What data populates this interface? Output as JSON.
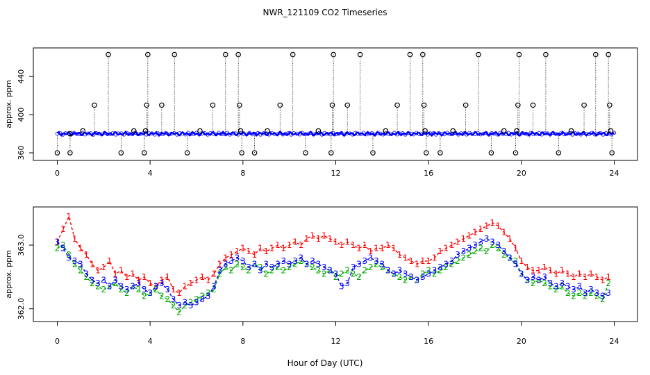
{
  "chart_data": [
    {
      "type": "scatter",
      "title": "NWR_121109  CO2 Timeseries",
      "xlabel": "",
      "ylabel": "approx. ppm",
      "xlim": [
        0,
        24
      ],
      "ylim": [
        352,
        470
      ],
      "xticks": [
        "0",
        "4",
        "8",
        "12",
        "16",
        "20",
        "24"
      ],
      "yticks": [
        "360",
        "400",
        "440"
      ],
      "baseline_ppm": 380,
      "series": [
        {
          "name": "raw (blue)",
          "color": "#0000ff",
          "value_range": [
            378,
            382
          ]
        },
        {
          "name": "outliers (black circles)",
          "color": "#000000",
          "points": [
            {
              "x": 0.0,
              "y": 360
            },
            {
              "x": 0.55,
              "y": 380
            },
            {
              "x": 0.55,
              "y": 360
            },
            {
              "x": 1.1,
              "y": 383
            },
            {
              "x": 1.6,
              "y": 410
            },
            {
              "x": 2.2,
              "y": 463
            },
            {
              "x": 2.75,
              "y": 360
            },
            {
              "x": 3.3,
              "y": 383
            },
            {
              "x": 3.75,
              "y": 360
            },
            {
              "x": 3.8,
              "y": 383
            },
            {
              "x": 3.85,
              "y": 410
            },
            {
              "x": 3.9,
              "y": 463
            },
            {
              "x": 4.5,
              "y": 410
            },
            {
              "x": 5.05,
              "y": 463
            },
            {
              "x": 5.6,
              "y": 360
            },
            {
              "x": 6.15,
              "y": 383
            },
            {
              "x": 6.7,
              "y": 410
            },
            {
              "x": 7.25,
              "y": 463
            },
            {
              "x": 7.8,
              "y": 463
            },
            {
              "x": 7.85,
              "y": 410
            },
            {
              "x": 7.9,
              "y": 383
            },
            {
              "x": 7.95,
              "y": 360
            },
            {
              "x": 8.5,
              "y": 360
            },
            {
              "x": 9.05,
              "y": 383
            },
            {
              "x": 9.6,
              "y": 410
            },
            {
              "x": 10.15,
              "y": 463
            },
            {
              "x": 10.7,
              "y": 360
            },
            {
              "x": 11.25,
              "y": 383
            },
            {
              "x": 11.8,
              "y": 360
            },
            {
              "x": 11.85,
              "y": 410
            },
            {
              "x": 11.9,
              "y": 463
            },
            {
              "x": 12.5,
              "y": 410
            },
            {
              "x": 13.05,
              "y": 463
            },
            {
              "x": 13.6,
              "y": 360
            },
            {
              "x": 14.15,
              "y": 383
            },
            {
              "x": 14.65,
              "y": 410
            },
            {
              "x": 15.2,
              "y": 463
            },
            {
              "x": 15.75,
              "y": 463
            },
            {
              "x": 15.8,
              "y": 410
            },
            {
              "x": 15.85,
              "y": 383
            },
            {
              "x": 15.9,
              "y": 360
            },
            {
              "x": 16.5,
              "y": 360
            },
            {
              "x": 17.05,
              "y": 383
            },
            {
              "x": 17.6,
              "y": 410
            },
            {
              "x": 18.15,
              "y": 463
            },
            {
              "x": 18.7,
              "y": 360
            },
            {
              "x": 19.25,
              "y": 383
            },
            {
              "x": 19.75,
              "y": 360
            },
            {
              "x": 19.8,
              "y": 383
            },
            {
              "x": 19.85,
              "y": 410
            },
            {
              "x": 19.9,
              "y": 463
            },
            {
              "x": 20.5,
              "y": 410
            },
            {
              "x": 21.05,
              "y": 463
            },
            {
              "x": 21.6,
              "y": 360
            },
            {
              "x": 22.15,
              "y": 383
            },
            {
              "x": 22.7,
              "y": 410
            },
            {
              "x": 23.2,
              "y": 463
            },
            {
              "x": 23.75,
              "y": 463
            },
            {
              "x": 23.8,
              "y": 410
            },
            {
              "x": 23.85,
              "y": 383
            },
            {
              "x": 23.9,
              "y": 360
            }
          ]
        }
      ]
    },
    {
      "type": "line",
      "title": "",
      "xlabel": "Hour of Day (UTC)",
      "ylabel": "approx. ppm",
      "xlim": [
        0,
        24
      ],
      "ylim": [
        361.8,
        363.6
      ],
      "xticks": [
        "0",
        "4",
        "8",
        "12",
        "16",
        "20",
        "24"
      ],
      "yticks": [
        "362.0",
        "363.0"
      ],
      "series": [
        {
          "name": "1",
          "color": "#ff0000",
          "glyph": "1",
          "x": [
            0.0,
            0.25,
            0.5,
            0.75,
            1.0,
            1.25,
            1.5,
            1.75,
            2.0,
            2.25,
            2.5,
            2.75,
            3.0,
            3.25,
            3.5,
            3.75,
            4.0,
            4.25,
            4.5,
            4.75,
            5.0,
            5.25,
            5.5,
            5.75,
            6.0,
            6.25,
            6.5,
            6.75,
            7.0,
            7.25,
            7.5,
            7.75,
            8.0,
            8.25,
            8.5,
            8.75,
            9.0,
            9.25,
            9.5,
            9.75,
            10.0,
            10.25,
            10.5,
            10.75,
            11.0,
            11.25,
            11.5,
            11.75,
            12.0,
            12.25,
            12.5,
            12.75,
            13.0,
            13.25,
            13.5,
            13.75,
            14.0,
            14.25,
            14.5,
            14.75,
            15.0,
            15.25,
            15.5,
            15.75,
            16.0,
            16.25,
            16.5,
            16.75,
            17.0,
            17.25,
            17.5,
            17.75,
            18.0,
            18.25,
            18.5,
            18.75,
            19.0,
            19.25,
            19.5,
            19.75,
            20.0,
            20.25,
            20.5,
            20.75,
            21.0,
            21.25,
            21.5,
            21.75,
            22.0,
            22.25,
            22.5,
            22.75,
            23.0,
            23.25,
            23.5,
            23.75
          ],
          "values": [
            363.05,
            363.25,
            363.45,
            363.1,
            362.95,
            362.85,
            362.7,
            362.6,
            362.65,
            362.75,
            362.55,
            362.6,
            362.5,
            362.55,
            362.45,
            362.5,
            362.4,
            362.35,
            362.45,
            362.5,
            362.3,
            362.25,
            362.35,
            362.4,
            362.45,
            362.5,
            362.45,
            362.55,
            362.7,
            362.8,
            362.85,
            362.9,
            362.95,
            362.9,
            362.85,
            362.95,
            362.9,
            362.95,
            363.0,
            362.95,
            363.0,
            363.05,
            363.0,
            363.1,
            363.15,
            363.1,
            363.15,
            363.1,
            363.05,
            363.0,
            363.05,
            363.0,
            362.95,
            363.0,
            362.9,
            362.95,
            362.95,
            363.0,
            362.95,
            362.85,
            362.8,
            362.75,
            362.7,
            362.75,
            362.75,
            362.8,
            362.9,
            362.95,
            363.0,
            363.05,
            363.1,
            363.15,
            363.2,
            363.25,
            363.3,
            363.35,
            363.3,
            363.2,
            363.1,
            362.95,
            362.75,
            362.65,
            362.6,
            362.6,
            362.65,
            362.6,
            362.55,
            362.6,
            362.55,
            362.5,
            362.55,
            362.5,
            362.55,
            362.5,
            362.45,
            362.5
          ]
        },
        {
          "name": "2",
          "color": "#00aa00",
          "glyph": "2",
          "x": [
            0.0,
            0.25,
            0.5,
            0.75,
            1.0,
            1.25,
            1.5,
            1.75,
            2.0,
            2.25,
            2.5,
            2.75,
            3.0,
            3.25,
            3.5,
            3.75,
            4.0,
            4.25,
            4.5,
            4.75,
            5.0,
            5.25,
            5.5,
            5.75,
            6.0,
            6.25,
            6.5,
            6.75,
            7.0,
            7.25,
            7.5,
            7.75,
            8.0,
            8.25,
            8.5,
            8.75,
            9.0,
            9.25,
            9.5,
            9.75,
            10.0,
            10.25,
            10.5,
            10.75,
            11.0,
            11.25,
            11.5,
            11.75,
            12.0,
            12.25,
            12.5,
            12.75,
            13.0,
            13.25,
            13.5,
            13.75,
            14.0,
            14.25,
            14.5,
            14.75,
            15.0,
            15.25,
            15.5,
            15.75,
            16.0,
            16.25,
            16.5,
            16.75,
            17.0,
            17.25,
            17.5,
            17.75,
            18.0,
            18.25,
            18.5,
            18.75,
            19.0,
            19.25,
            19.5,
            19.75,
            20.0,
            20.25,
            20.5,
            20.75,
            21.0,
            21.25,
            21.5,
            21.75,
            22.0,
            22.25,
            22.5,
            22.75,
            23.0,
            23.25,
            23.5,
            23.75
          ],
          "values": [
            362.95,
            363.0,
            362.85,
            362.7,
            362.6,
            362.5,
            362.4,
            362.35,
            362.3,
            362.35,
            362.4,
            362.3,
            362.25,
            362.35,
            362.3,
            362.2,
            362.25,
            362.3,
            362.2,
            362.15,
            362.05,
            361.95,
            362.05,
            362.1,
            362.15,
            362.2,
            362.25,
            362.3,
            362.55,
            362.65,
            362.6,
            362.7,
            362.65,
            362.6,
            362.7,
            362.65,
            362.55,
            362.6,
            362.65,
            362.6,
            362.65,
            362.7,
            362.75,
            362.7,
            362.65,
            362.6,
            362.55,
            362.6,
            362.5,
            362.55,
            362.6,
            362.55,
            362.5,
            362.6,
            362.65,
            362.7,
            362.65,
            362.6,
            362.55,
            362.5,
            362.45,
            362.5,
            362.45,
            362.55,
            362.6,
            362.55,
            362.6,
            362.65,
            362.7,
            362.75,
            362.8,
            362.85,
            362.9,
            362.95,
            362.9,
            363.0,
            362.95,
            362.85,
            362.8,
            362.75,
            362.55,
            362.45,
            362.4,
            362.45,
            362.4,
            362.35,
            362.3,
            362.35,
            362.25,
            362.2,
            362.25,
            362.2,
            362.25,
            362.2,
            362.15,
            362.4
          ]
        },
        {
          "name": "3",
          "color": "#0000ff",
          "glyph": "3",
          "x": [
            0.0,
            0.25,
            0.5,
            0.75,
            1.0,
            1.25,
            1.5,
            1.75,
            2.0,
            2.25,
            2.5,
            2.75,
            3.0,
            3.25,
            3.5,
            3.75,
            4.0,
            4.25,
            4.5,
            4.75,
            5.0,
            5.25,
            5.5,
            5.75,
            6.0,
            6.25,
            6.5,
            6.75,
            7.0,
            7.25,
            7.5,
            7.75,
            8.0,
            8.25,
            8.5,
            8.75,
            9.0,
            9.25,
            9.5,
            9.75,
            10.0,
            10.25,
            10.5,
            10.75,
            11.0,
            11.25,
            11.5,
            11.75,
            12.0,
            12.25,
            12.5,
            12.75,
            13.0,
            13.25,
            13.5,
            13.75,
            14.0,
            14.25,
            14.5,
            14.75,
            15.0,
            15.25,
            15.5,
            15.75,
            16.0,
            16.25,
            16.5,
            16.75,
            17.0,
            17.25,
            17.5,
            17.75,
            18.0,
            18.25,
            18.5,
            18.75,
            19.0,
            19.25,
            19.5,
            19.75,
            20.0,
            20.25,
            20.5,
            20.75,
            21.0,
            21.25,
            21.5,
            21.75,
            22.0,
            22.25,
            22.5,
            22.75,
            23.0,
            23.25,
            23.5,
            23.75
          ],
          "values": [
            363.05,
            362.95,
            362.8,
            362.75,
            362.7,
            362.55,
            362.45,
            362.4,
            362.45,
            362.35,
            362.45,
            362.35,
            362.3,
            362.35,
            362.4,
            362.3,
            362.25,
            362.35,
            362.4,
            362.3,
            362.15,
            362.05,
            362.1,
            362.05,
            362.1,
            362.15,
            362.2,
            362.35,
            362.6,
            362.7,
            362.75,
            362.8,
            362.75,
            362.65,
            362.7,
            362.6,
            362.7,
            362.65,
            362.7,
            362.75,
            362.7,
            362.75,
            362.8,
            362.7,
            362.75,
            362.7,
            362.65,
            362.6,
            362.55,
            362.35,
            362.4,
            362.65,
            362.7,
            362.75,
            362.8,
            362.75,
            362.7,
            362.6,
            362.55,
            362.6,
            362.55,
            362.5,
            362.45,
            362.5,
            362.55,
            362.6,
            362.65,
            362.7,
            362.75,
            362.85,
            362.9,
            362.95,
            363.0,
            363.05,
            363.1,
            363.05,
            363.0,
            362.9,
            362.8,
            362.7,
            362.55,
            362.45,
            362.5,
            362.45,
            362.5,
            362.4,
            362.35,
            362.4,
            362.35,
            362.3,
            362.35,
            362.25,
            362.3,
            362.25,
            362.2,
            362.25
          ]
        }
      ]
    }
  ]
}
